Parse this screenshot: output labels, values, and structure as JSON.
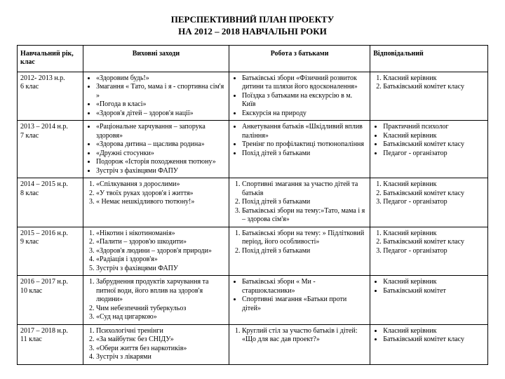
{
  "title_line1": "ПЕРСПЕКТИВНИЙ    ПЛАН    ПРОЕКТУ",
  "title_line2": "НА   2012 – 2018   НАВЧАЛЬНІ  РОКИ",
  "headers": {
    "col1": "Навчальний рік, клас",
    "col2": "Виховні  заходи",
    "col3": "Робота  з  батьками",
    "col4": "Відповідальний"
  },
  "rows": [
    {
      "year": "2012- 2013 н.р.",
      "klass": "6 клас",
      "events": [
        "«Здоровим будь!»",
        "Змагання « Тато, мама і я  - спортивна сім'я »",
        "«Погода в класі»",
        "«Здоров'я дітей – здоров'я нації»"
      ],
      "events_ol": false,
      "parents": [
        "Батьківські збори «Фізичний розвиток дитини та шляхи його вдосконалення»",
        "Поїздка з батьками на екскурсію в м. Київ",
        "Екскурсія на природу"
      ],
      "parents_ol": false,
      "resp": [
        "Класний керівник",
        "Батьківський комітет класу"
      ],
      "resp_ol": true
    },
    {
      "year": "2013 – 2014 н.р.",
      "klass": "7 клас",
      "events": [
        "«Раціональне харчування – запорука здоровя»",
        "«Здорова дитина – щаслива родина»",
        "«Дружні стосунки»",
        "Подорож «Історія походження тютюну»",
        "Зустріч з фахівцями ФАПУ"
      ],
      "events_ol": false,
      "parents": [
        "Анкетування батьків «Шкідливий вплив паління»",
        "Тренінг по профілактиці тютюнопаління",
        "Похід дітей з батьками"
      ],
      "parents_ol": false,
      "resp": [
        "Практичний психолог",
        "Класний керівник",
        "Батьківський комітет класу",
        "Педагог - організатор"
      ],
      "resp_ol": false
    },
    {
      "year": "2014 – 2015 н.р.",
      "klass": "8 клас",
      "events": [
        "«Спілкування з дорослими»",
        "«У твоїх руках здоров'я і життя»",
        "« Немає нешкідливого тютюну!»"
      ],
      "events_ol": true,
      "parents": [
        "Спортивні змагання за участю дітей та батьків",
        "Похід дітей з батьками",
        "Батьківські збори на тему:»Тато, мама і я – здорова сім'я»"
      ],
      "parents_ol": true,
      "resp": [
        "Класний керівник",
        "Батьківський комітет класу",
        "Педагог - організатор"
      ],
      "resp_ol": true
    },
    {
      "year": "2015 – 2016 н.р.",
      "klass": "9 клас",
      "events": [
        "«Нікотин і нікотиноманія»",
        "«Палити – здоров'ю шкодити»",
        "«Здоров'я людини – здоров'я природи»",
        "«Радіація і здоров'я»",
        "Зустріч з фахівцями ФАПУ"
      ],
      "events_ol": true,
      "parents": [
        "Батьківські збори на тему: » Підлітковий період, його особливості»",
        "Похід дітей з батьками"
      ],
      "parents_ol": true,
      "resp": [
        "Класний керівник",
        "Батьківський комітет класу",
        "Педагог - організатор"
      ],
      "resp_ol": true
    },
    {
      "year": "2016 – 2017 н.р.",
      "klass": "10 клас",
      "events": [
        "Забруднення продуктів харчування та питної води, його вплив на здоров'я людини»",
        "Чим небезпечний туберкульоз",
        "«Суд над цигаркою»"
      ],
      "events_ol": true,
      "parents": [
        "Батьківські збори « Ми   - старшокласники»",
        "Спортивні змагання «Батьки проти дітей»"
      ],
      "parents_ol": false,
      "resp": [
        "Класний керівник",
        "Батьківський комітет"
      ],
      "resp_ol": false
    },
    {
      "year": "2017 – 2018 н.р.",
      "klass": "11 клас",
      "events": [
        "Психологічні тренінги",
        "«За майбутнє без СНІДУ»",
        "«Обери життя без наркотиків»",
        "Зустріч з лікарями"
      ],
      "events_ol": true,
      "parents": [
        "Круглий стіл за участю батьків і дітей: «Що для вас дав проект?»"
      ],
      "parents_ol": true,
      "resp": [
        "Класний керівник",
        "Батьківський комітет класу"
      ],
      "resp_ol": false
    }
  ]
}
